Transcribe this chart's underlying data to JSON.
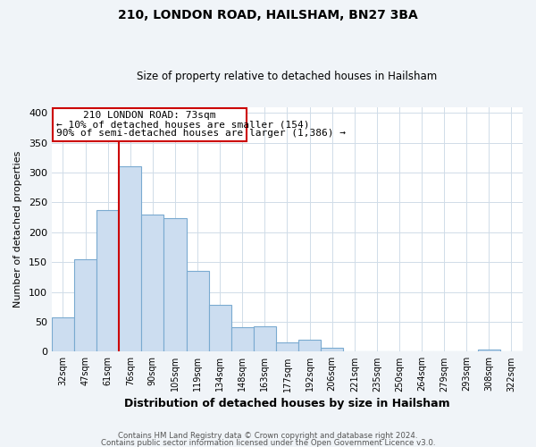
{
  "title": "210, LONDON ROAD, HAILSHAM, BN27 3BA",
  "subtitle": "Size of property relative to detached houses in Hailsham",
  "xlabel": "Distribution of detached houses by size in Hailsham",
  "ylabel": "Number of detached properties",
  "bar_labels": [
    "32sqm",
    "47sqm",
    "61sqm",
    "76sqm",
    "90sqm",
    "105sqm",
    "119sqm",
    "134sqm",
    "148sqm",
    "163sqm",
    "177sqm",
    "192sqm",
    "206sqm",
    "221sqm",
    "235sqm",
    "250sqm",
    "264sqm",
    "279sqm",
    "293sqm",
    "308sqm",
    "322sqm"
  ],
  "bar_values": [
    57,
    155,
    237,
    310,
    230,
    224,
    135,
    78,
    41,
    42,
    15,
    20,
    7,
    0,
    0,
    0,
    0,
    0,
    0,
    4,
    0
  ],
  "bar_color": "#ccddf0",
  "bar_edge_color": "#7aaad0",
  "vline_color": "#cc0000",
  "annotation_title": "210 LONDON ROAD: 73sqm",
  "annotation_line1": "← 10% of detached houses are smaller (154)",
  "annotation_line2": "90% of semi-detached houses are larger (1,386) →",
  "annotation_box_edge": "#cc0000",
  "ylim": [
    0,
    410
  ],
  "yticks": [
    0,
    50,
    100,
    150,
    200,
    250,
    300,
    350,
    400
  ],
  "footer1": "Contains HM Land Registry data © Crown copyright and database right 2024.",
  "footer2": "Contains public sector information licensed under the Open Government Licence v3.0.",
  "bg_color": "#f0f4f8",
  "plot_bg_color": "#ffffff",
  "grid_color": "#d0dce8"
}
